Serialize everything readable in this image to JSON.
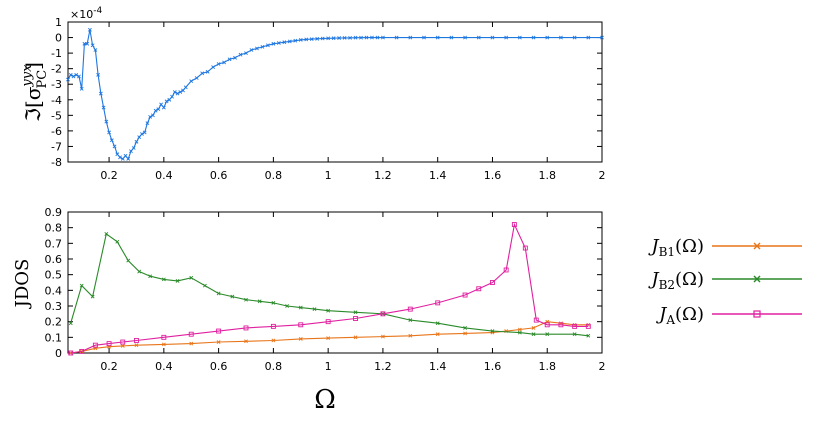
{
  "chart_data": [
    {
      "type": "line",
      "ylabel": "ℑ[σ",
      "ylabel_sup": "yyx",
      "ylabel_sub": "PC",
      "ylabel_close": "]",
      "y_multiplier": "×10",
      "y_multiplier_exp": "-4",
      "xlim": [
        0.05,
        2.0
      ],
      "ylim": [
        -8,
        1
      ],
      "xticks": [
        "0.2",
        "0.4",
        "0.6",
        "0.8",
        "1",
        "1.2",
        "1.4",
        "1.6",
        "1.8",
        "2"
      ],
      "xtick_values": [
        0.2,
        0.4,
        0.6,
        0.8,
        1.0,
        1.2,
        1.4,
        1.6,
        1.8,
        2.0
      ],
      "yticks": [
        "1",
        "0",
        "-1",
        "-2",
        "-3",
        "-4",
        "-5",
        "-6",
        "-7",
        "-8"
      ],
      "ytick_values": [
        1,
        0,
        -1,
        -2,
        -3,
        -4,
        -5,
        -6,
        -7,
        -8
      ],
      "grid": false,
      "series": [
        {
          "color": "#1f77e0",
          "x": [
            0.05,
            0.06,
            0.07,
            0.08,
            0.09,
            0.1,
            0.11,
            0.12,
            0.13,
            0.14,
            0.15,
            0.16,
            0.17,
            0.18,
            0.19,
            0.2,
            0.21,
            0.22,
            0.23,
            0.24,
            0.25,
            0.26,
            0.27,
            0.28,
            0.29,
            0.3,
            0.31,
            0.32,
            0.33,
            0.34,
            0.35,
            0.36,
            0.37,
            0.38,
            0.39,
            0.4,
            0.41,
            0.42,
            0.43,
            0.44,
            0.45,
            0.46,
            0.47,
            0.48,
            0.5,
            0.52,
            0.54,
            0.56,
            0.58,
            0.6,
            0.62,
            0.64,
            0.66,
            0.68,
            0.7,
            0.72,
            0.74,
            0.76,
            0.78,
            0.8,
            0.82,
            0.84,
            0.86,
            0.88,
            0.9,
            0.92,
            0.94,
            0.96,
            0.98,
            1.0,
            1.02,
            1.04,
            1.06,
            1.08,
            1.1,
            1.12,
            1.14,
            1.16,
            1.18,
            1.2,
            1.25,
            1.3,
            1.35,
            1.4,
            1.45,
            1.5,
            1.55,
            1.6,
            1.65,
            1.7,
            1.75,
            1.8,
            1.85,
            1.9,
            1.95,
            2.0
          ],
          "y": [
            -2.7,
            -2.4,
            -2.5,
            -2.4,
            -2.5,
            -3.3,
            -0.4,
            -0.4,
            0.5,
            -0.5,
            -0.8,
            -2.4,
            -3.6,
            -4.5,
            -5.4,
            -6.1,
            -6.6,
            -7.0,
            -7.5,
            -7.7,
            -7.8,
            -7.6,
            -7.8,
            -7.3,
            -7.1,
            -6.7,
            -6.4,
            -6.2,
            -6.1,
            -5.5,
            -5.1,
            -5.0,
            -4.7,
            -4.6,
            -4.3,
            -4.5,
            -4.1,
            -4.0,
            -3.8,
            -3.5,
            -3.6,
            -3.5,
            -3.4,
            -3.2,
            -2.8,
            -2.6,
            -2.3,
            -2.2,
            -1.9,
            -1.7,
            -1.6,
            -1.4,
            -1.3,
            -1.1,
            -1.0,
            -0.8,
            -0.7,
            -0.6,
            -0.5,
            -0.4,
            -0.35,
            -0.3,
            -0.25,
            -0.2,
            -0.15,
            -0.12,
            -0.1,
            -0.08,
            -0.06,
            -0.05,
            -0.04,
            -0.03,
            -0.02,
            -0.02,
            -0.01,
            -0.01,
            0,
            0,
            0,
            0,
            0,
            0,
            0,
            0,
            0,
            0,
            0,
            0,
            0,
            0,
            0,
            0,
            0,
            0,
            0,
            0
          ]
        }
      ]
    },
    {
      "type": "line",
      "ylabel": "JDOS",
      "xlabel": "Ω",
      "xlim": [
        0.05,
        2.0
      ],
      "ylim": [
        0,
        0.9
      ],
      "xticks": [
        "0.2",
        "0.4",
        "0.6",
        "0.8",
        "1",
        "1.2",
        "1.4",
        "1.6",
        "1.8",
        "2"
      ],
      "xtick_values": [
        0.2,
        0.4,
        0.6,
        0.8,
        1.0,
        1.2,
        1.4,
        1.6,
        1.8,
        2.0
      ],
      "yticks": [
        "0.9",
        "0.8",
        "0.7",
        "0.6",
        "0.5",
        "0.4",
        "0.3",
        "0.2",
        "0.1",
        "0"
      ],
      "ytick_values": [
        0.9,
        0.8,
        0.7,
        0.6,
        0.5,
        0.4,
        0.3,
        0.2,
        0.1,
        0
      ],
      "grid": false,
      "legend_position": "right",
      "series": [
        {
          "name": "J",
          "name_sub": "B1",
          "name_arg": "(Ω)",
          "color": "#e8751a",
          "marker": "x",
          "x": [
            0.06,
            0.1,
            0.15,
            0.2,
            0.25,
            0.3,
            0.4,
            0.5,
            0.6,
            0.7,
            0.8,
            0.9,
            1.0,
            1.1,
            1.2,
            1.3,
            1.4,
            1.5,
            1.6,
            1.65,
            1.7,
            1.75,
            1.8,
            1.85,
            1.9,
            1.95
          ],
          "y": [
            0.0,
            0.01,
            0.03,
            0.04,
            0.045,
            0.05,
            0.055,
            0.06,
            0.07,
            0.075,
            0.08,
            0.09,
            0.095,
            0.1,
            0.105,
            0.11,
            0.12,
            0.125,
            0.13,
            0.14,
            0.15,
            0.16,
            0.2,
            0.19,
            0.18,
            0.18
          ]
        },
        {
          "name": "J",
          "name_sub": "B2",
          "name_arg": "(Ω)",
          "color": "#2a8a2a",
          "marker": "*",
          "x": [
            0.06,
            0.1,
            0.14,
            0.19,
            0.23,
            0.27,
            0.31,
            0.35,
            0.4,
            0.45,
            0.5,
            0.55,
            0.6,
            0.65,
            0.7,
            0.75,
            0.8,
            0.85,
            0.9,
            0.95,
            1.0,
            1.1,
            1.2,
            1.3,
            1.4,
            1.5,
            1.6,
            1.7,
            1.75,
            1.8,
            1.9,
            1.95
          ],
          "y": [
            0.19,
            0.43,
            0.36,
            0.76,
            0.71,
            0.59,
            0.52,
            0.49,
            0.47,
            0.46,
            0.48,
            0.43,
            0.38,
            0.36,
            0.34,
            0.33,
            0.32,
            0.3,
            0.29,
            0.28,
            0.27,
            0.26,
            0.25,
            0.21,
            0.19,
            0.16,
            0.14,
            0.13,
            0.12,
            0.12,
            0.12,
            0.11
          ]
        },
        {
          "name": "J",
          "name_sub": "A",
          "name_arg": "(Ω)",
          "color": "#e020a0",
          "marker": "square",
          "x": [
            0.06,
            0.1,
            0.15,
            0.2,
            0.25,
            0.3,
            0.4,
            0.5,
            0.6,
            0.7,
            0.8,
            0.9,
            1.0,
            1.1,
            1.2,
            1.3,
            1.4,
            1.5,
            1.55,
            1.6,
            1.65,
            1.68,
            1.72,
            1.76,
            1.8,
            1.85,
            1.9,
            1.95
          ],
          "y": [
            0.0,
            0.01,
            0.05,
            0.06,
            0.07,
            0.08,
            0.1,
            0.12,
            0.14,
            0.16,
            0.17,
            0.18,
            0.2,
            0.22,
            0.25,
            0.28,
            0.32,
            0.37,
            0.41,
            0.45,
            0.53,
            0.82,
            0.67,
            0.21,
            0.18,
            0.18,
            0.17,
            0.17
          ]
        }
      ]
    }
  ]
}
